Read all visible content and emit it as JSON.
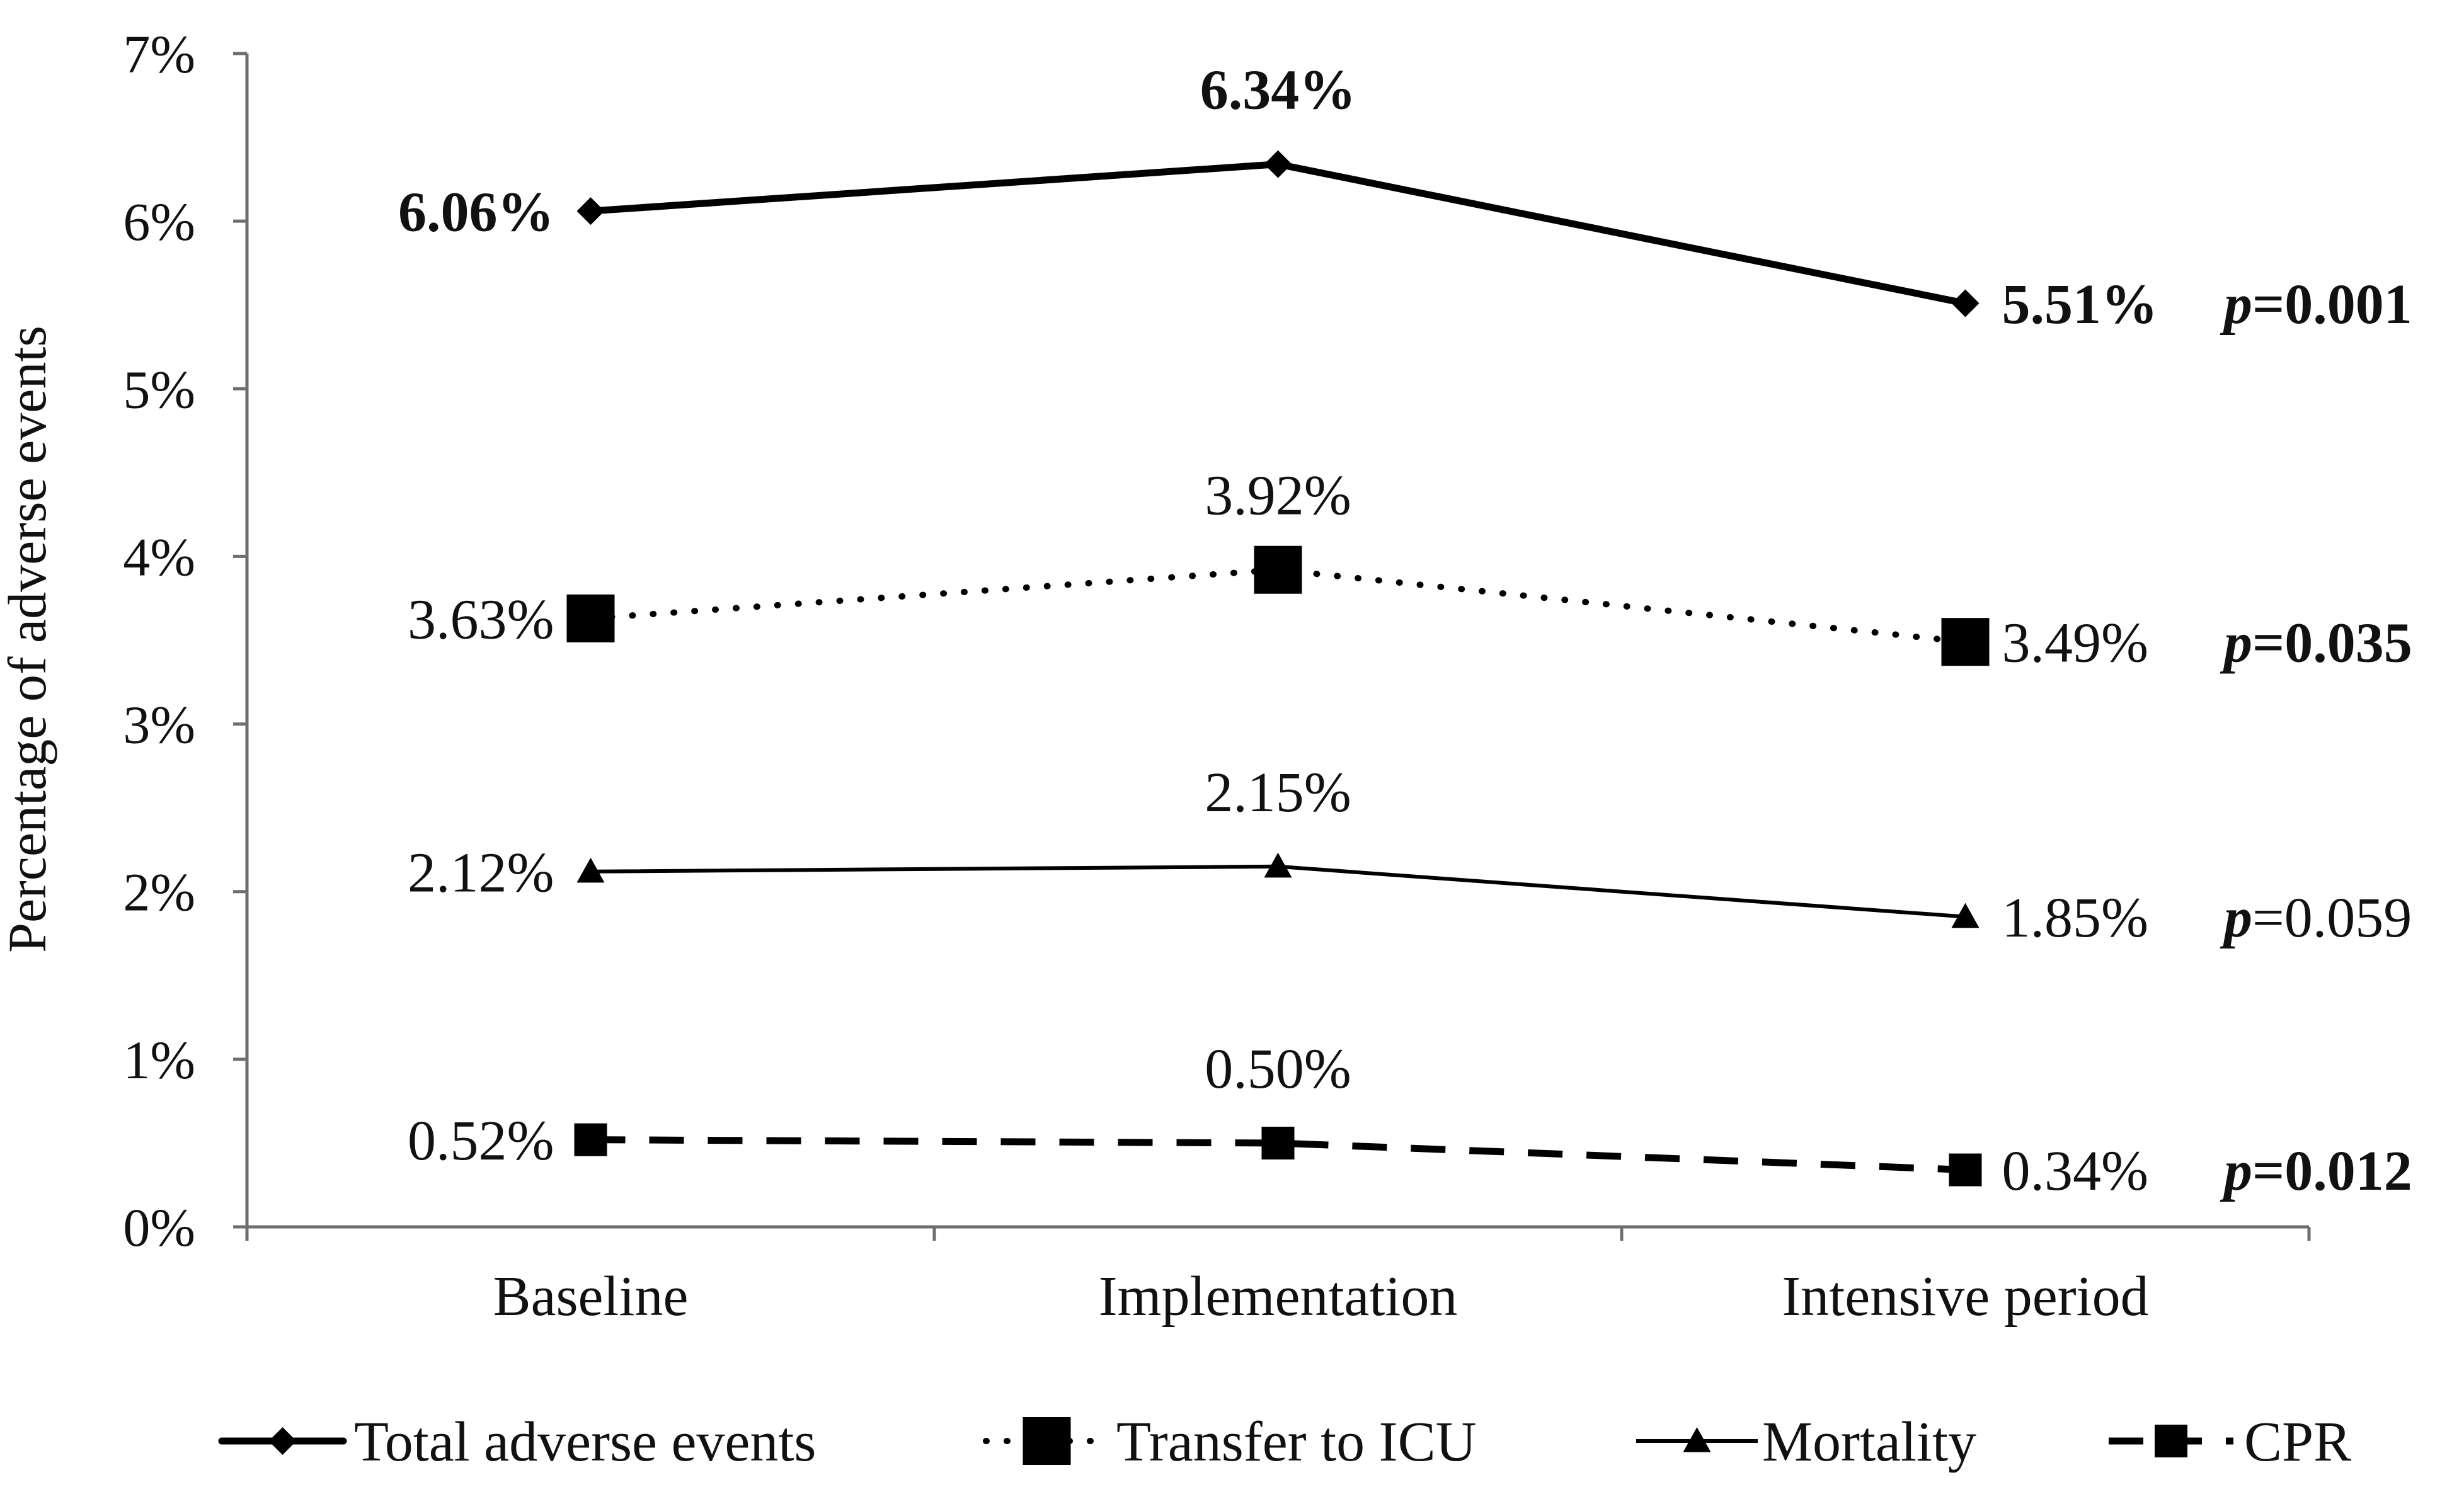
{
  "chart_data": {
    "type": "line",
    "title": "",
    "xlabel": "",
    "ylabel": "Percentage of adverse events",
    "ylim": [
      0,
      7
    ],
    "y_ticks": [
      "0%",
      "1%",
      "2%",
      "3%",
      "4%",
      "5%",
      "6%",
      "7%"
    ],
    "grid": false,
    "legend_position": "bottom",
    "categories": [
      "Baseline",
      "Implementation",
      "Intensive period"
    ],
    "series": [
      {
        "name": "Total adverse events",
        "values": [
          6.06,
          6.34,
          5.51
        ],
        "labels": [
          "6.06%",
          "6.34%",
          "5.51%"
        ],
        "p_prefix": "p",
        "p_value": "=0.001",
        "bold": true,
        "line_style": "solid-thick",
        "marker": "diamond"
      },
      {
        "name": "Transfer to ICU",
        "values": [
          3.63,
          3.92,
          3.49
        ],
        "labels": [
          "3.63%",
          "3.92%",
          "3.49%"
        ],
        "p_prefix": "p",
        "p_value": "=0.035",
        "bold": false,
        "p_bold": true,
        "line_style": "dotted",
        "marker": "square-large"
      },
      {
        "name": "Mortality",
        "values": [
          2.12,
          2.15,
          1.85
        ],
        "labels": [
          "2.12%",
          "2.15%",
          "1.85%"
        ],
        "p_prefix": "p",
        "p_value": "=0.059",
        "bold": false,
        "p_bold": false,
        "line_style": "solid-thin",
        "marker": "triangle"
      },
      {
        "name": "CPR",
        "values": [
          0.52,
          0.5,
          0.34
        ],
        "labels": [
          "0.52%",
          "0.50%",
          "0.34%"
        ],
        "p_prefix": "p",
        "p_value": "=0.012",
        "bold": false,
        "p_bold": true,
        "line_style": "dashed",
        "marker": "square"
      }
    ],
    "colors": {
      "line": "#000000",
      "axis": "#6e6e6e",
      "text": "#111111"
    }
  }
}
